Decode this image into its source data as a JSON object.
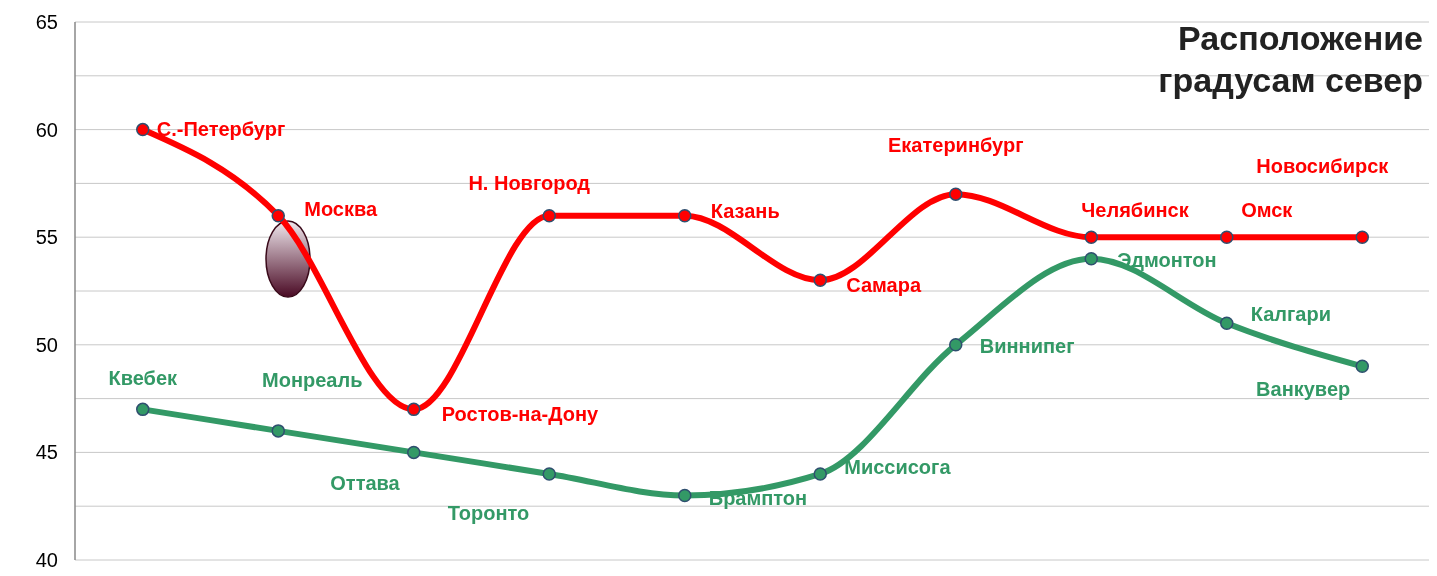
{
  "chart_data": {
    "type": "line",
    "title": "Расположение\nградусам север",
    "categories": [
      null,
      null,
      null,
      null,
      null,
      null,
      null,
      null,
      null,
      null
    ],
    "series": [
      {
        "name": null,
        "color": "#ff0000",
        "values": [
          60,
          56,
          47,
          56,
          56,
          53,
          57,
          55,
          55,
          55
        ],
        "value_labels": [
          "С.-Петербург",
          "Москва",
          "Ростов-на-Дону",
          "Н. Новгород",
          "Казань",
          "Самара",
          "Екатеринбург",
          "Челябинск",
          "Омск",
          "Новосибирск"
        ]
      },
      {
        "name": null,
        "color": "#339966",
        "values": [
          47,
          46,
          45,
          44,
          43,
          44,
          50,
          54,
          51,
          49
        ],
        "value_labels": [
          "Квебек",
          "Монреаль",
          "Оттава",
          "Торонто",
          "Брамптон",
          "Миссисога",
          "Виннипег",
          "Эдмонтон",
          "Калгари",
          "Ванкувер"
        ]
      }
    ],
    "ylim": [
      40,
      65
    ],
    "yticks": [
      40,
      {
        "value": 42.5,
        "label": null
      },
      45,
      {
        "value": 47.5,
        "label": null
      },
      50,
      {
        "value": 52.5,
        "label": null
      },
      55,
      {
        "value": 57.5,
        "label": null
      },
      60,
      {
        "value": 62.5,
        "label": null
      },
      65
    ],
    "grid": "y",
    "marker": "circle",
    "line_style": "solid"
  }
}
